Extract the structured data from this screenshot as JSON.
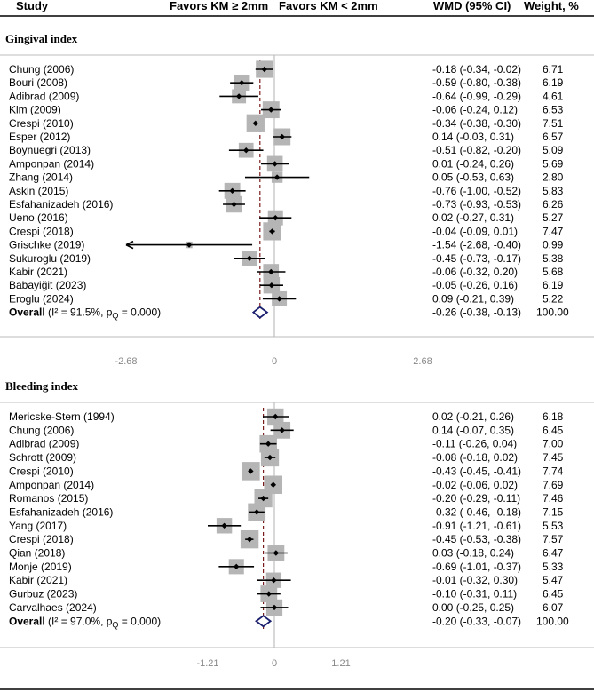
{
  "header": {
    "study": "Study",
    "favors_left": "Favors KM ≥ 2mm",
    "favors_right": "Favors KM < 2mm",
    "wmd": "WMD (95% CI)",
    "weight": "Weight, %"
  },
  "colors": {
    "box": "#b5b5b5",
    "ref_line": "#7a1c1c",
    "overall": "#1a1f6e",
    "axis": "#bbbbbb",
    "zero_line": "#bdbdbd"
  },
  "chart_data": [
    {
      "type": "forest",
      "title": "Gingival index",
      "xlim": [
        -2.68,
        2.68
      ],
      "ticks": [
        "-2.68",
        "0",
        "2.68"
      ],
      "overall_effect": -0.26,
      "studies": [
        {
          "name": "Chung (2006)",
          "est": -0.18,
          "lo": -0.34,
          "hi": -0.02,
          "ci": "-0.18 (-0.34, -0.02)",
          "weight": "6.71"
        },
        {
          "name": "Bouri (2008)",
          "est": -0.59,
          "lo": -0.8,
          "hi": -0.38,
          "ci": "-0.59 (-0.80, -0.38)",
          "weight": "6.19"
        },
        {
          "name": "Adibrad (2009)",
          "est": -0.64,
          "lo": -0.99,
          "hi": -0.29,
          "ci": "-0.64 (-0.99, -0.29)",
          "weight": "4.61"
        },
        {
          "name": "Kim (2009)",
          "est": -0.06,
          "lo": -0.24,
          "hi": 0.12,
          "ci": "-0.06 (-0.24, 0.12)",
          "weight": "6.53"
        },
        {
          "name": "Crespi (2010)",
          "est": -0.34,
          "lo": -0.38,
          "hi": -0.3,
          "ci": "-0.34 (-0.38, -0.30)",
          "weight": "7.51"
        },
        {
          "name": "Esper (2012)",
          "est": 0.14,
          "lo": -0.03,
          "hi": 0.31,
          "ci": "0.14 (-0.03, 0.31)",
          "weight": "6.57"
        },
        {
          "name": "Boynuegri (2013)",
          "est": -0.51,
          "lo": -0.82,
          "hi": -0.2,
          "ci": "-0.51 (-0.82, -0.20)",
          "weight": "5.09"
        },
        {
          "name": "Amponpan (2014)",
          "est": 0.01,
          "lo": -0.24,
          "hi": 0.26,
          "ci": "0.01 (-0.24, 0.26)",
          "weight": "5.69"
        },
        {
          "name": "Zhang (2014)",
          "est": 0.05,
          "lo": -0.53,
          "hi": 0.63,
          "ci": "0.05 (-0.53, 0.63)",
          "weight": "2.80"
        },
        {
          "name": "Askin (2015)",
          "est": -0.76,
          "lo": -1.0,
          "hi": -0.52,
          "ci": "-0.76 (-1.00, -0.52)",
          "weight": "5.83"
        },
        {
          "name": "Esfahanizadeh (2016)",
          "est": -0.73,
          "lo": -0.93,
          "hi": -0.53,
          "ci": "-0.73 (-0.93, -0.53)",
          "weight": "6.26"
        },
        {
          "name": "Ueno (2016)",
          "est": 0.02,
          "lo": -0.27,
          "hi": 0.31,
          "ci": "0.02 (-0.27, 0.31)",
          "weight": "5.27"
        },
        {
          "name": "Crespi (2018)",
          "est": -0.04,
          "lo": -0.09,
          "hi": 0.01,
          "ci": "-0.04 (-0.09, 0.01)",
          "weight": "7.47"
        },
        {
          "name": "Grischke (2019)",
          "est": -1.54,
          "lo": -2.68,
          "hi": -0.4,
          "ci": "-1.54 (-2.68, -0.40)",
          "weight": "0.99",
          "arrow_left": true
        },
        {
          "name": "Sukuroglu (2019)",
          "est": -0.45,
          "lo": -0.73,
          "hi": -0.17,
          "ci": "-0.45 (-0.73, -0.17)",
          "weight": "5.38"
        },
        {
          "name": "Kabir (2021)",
          "est": -0.06,
          "lo": -0.32,
          "hi": 0.2,
          "ci": "-0.06 (-0.32, 0.20)",
          "weight": "5.68"
        },
        {
          "name": "Babayiğit (2023)",
          "est": -0.05,
          "lo": -0.26,
          "hi": 0.16,
          "ci": "-0.05 (-0.26, 0.16)",
          "weight": "6.19"
        },
        {
          "name": "Eroglu (2024)",
          "est": 0.09,
          "lo": -0.21,
          "hi": 0.39,
          "ci": "0.09 (-0.21, 0.39)",
          "weight": "5.22"
        }
      ],
      "overall": {
        "label": "Overall",
        "het": "(I² = 91.5%, p",
        "het_sub": "Q",
        "het_end": " = 0.000)",
        "est": -0.26,
        "lo": -0.38,
        "hi": -0.13,
        "ci": "-0.26 (-0.38, -0.13)",
        "weight": "100.00"
      }
    },
    {
      "type": "forest",
      "title": "Bleeding index",
      "xlim": [
        -1.21,
        1.21
      ],
      "ticks": [
        "-1.21",
        "0",
        "1.21"
      ],
      "overall_effect": -0.2,
      "studies": [
        {
          "name": "Mericske-Stern (1994)",
          "est": 0.02,
          "lo": -0.21,
          "hi": 0.26,
          "ci": "0.02 (-0.21, 0.26)",
          "weight": "6.18"
        },
        {
          "name": "Chung (2006)",
          "est": 0.14,
          "lo": -0.07,
          "hi": 0.35,
          "ci": "0.14 (-0.07, 0.35)",
          "weight": "6.45"
        },
        {
          "name": "Adibrad (2009)",
          "est": -0.11,
          "lo": -0.26,
          "hi": 0.04,
          "ci": "-0.11 (-0.26, 0.04)",
          "weight": "7.00"
        },
        {
          "name": "Schrott (2009)",
          "est": -0.08,
          "lo": -0.18,
          "hi": 0.02,
          "ci": "-0.08 (-0.18, 0.02)",
          "weight": "7.45"
        },
        {
          "name": "Crespi (2010)",
          "est": -0.43,
          "lo": -0.45,
          "hi": -0.41,
          "ci": "-0.43 (-0.45, -0.41)",
          "weight": "7.74"
        },
        {
          "name": "Amponpan (2014)",
          "est": -0.02,
          "lo": -0.06,
          "hi": 0.02,
          "ci": "-0.02 (-0.06, 0.02)",
          "weight": "7.69"
        },
        {
          "name": "Romanos (2015)",
          "est": -0.2,
          "lo": -0.29,
          "hi": -0.11,
          "ci": "-0.20 (-0.29, -0.11)",
          "weight": "7.46"
        },
        {
          "name": "Esfahanizadeh (2016)",
          "est": -0.32,
          "lo": -0.46,
          "hi": -0.18,
          "ci": "-0.32 (-0.46, -0.18)",
          "weight": "7.15"
        },
        {
          "name": "Yang (2017)",
          "est": -0.91,
          "lo": -1.21,
          "hi": -0.61,
          "ci": "-0.91 (-1.21, -0.61)",
          "weight": "5.53"
        },
        {
          "name": "Crespi (2018)",
          "est": -0.45,
          "lo": -0.53,
          "hi": -0.38,
          "ci": "-0.45 (-0.53, -0.38)",
          "weight": "7.57"
        },
        {
          "name": "Qian (2018)",
          "est": 0.03,
          "lo": -0.18,
          "hi": 0.24,
          "ci": "0.03 (-0.18, 0.24)",
          "weight": "6.47"
        },
        {
          "name": "Monje (2019)",
          "est": -0.69,
          "lo": -1.01,
          "hi": -0.37,
          "ci": "-0.69 (-1.01, -0.37)",
          "weight": "5.33"
        },
        {
          "name": "Kabir (2021)",
          "est": -0.01,
          "lo": -0.32,
          "hi": 0.3,
          "ci": "-0.01 (-0.32, 0.30)",
          "weight": "5.47"
        },
        {
          "name": "Gurbuz (2023)",
          "est": -0.1,
          "lo": -0.31,
          "hi": 0.11,
          "ci": "-0.10 (-0.31, 0.11)",
          "weight": "6.45"
        },
        {
          "name": "Carvalhaes (2024)",
          "est": 0.0,
          "lo": -0.25,
          "hi": 0.25,
          "ci": "0.00 (-0.25, 0.25)",
          "weight": "6.07"
        }
      ],
      "overall": {
        "label": "Overall",
        "het": "(I² = 97.0%, p",
        "het_sub": "Q",
        "het_end": " = 0.000)",
        "est": -0.2,
        "lo": -0.33,
        "hi": -0.07,
        "ci": "-0.20 (-0.33, -0.07)",
        "weight": "100.00"
      }
    }
  ]
}
